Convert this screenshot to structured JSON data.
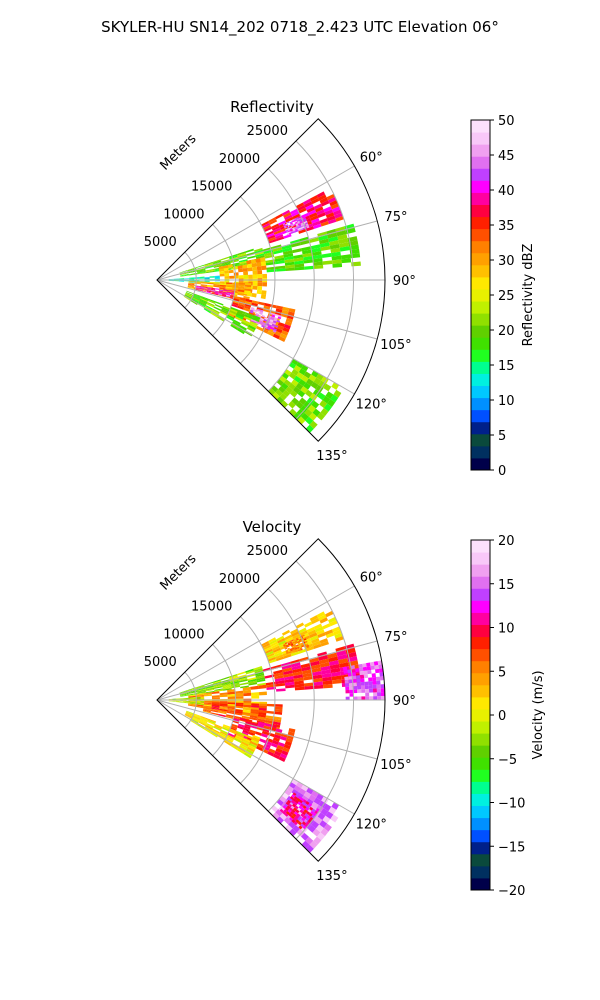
{
  "figure": {
    "suptitle": "SKYLER-HU  SN14_202  0718_2.423 UTC Elevation 06°"
  },
  "chart_data": [
    {
      "type": "heatmap",
      "subtype": "polar-sector",
      "title": "Reflectivity",
      "radial_label": "Meters",
      "radial_ticks": [
        "5000",
        "10000",
        "15000",
        "20000",
        "25000"
      ],
      "angle_ticks": [
        "60°",
        "75°",
        "90°",
        "105°",
        "120°",
        "135°"
      ],
      "angle_range_deg": [
        45,
        135
      ],
      "range_max_m": 29000,
      "grid": true,
      "colorbar": {
        "label": "Reflectivity dBZ",
        "range": [
          0,
          50
        ],
        "ticks": [
          "0",
          "5",
          "10",
          "15",
          "20",
          "25",
          "30",
          "35",
          "40",
          "45",
          "50"
        ],
        "colors": [
          "#00004a",
          "#003060",
          "#0a4a3c",
          "#00208a",
          "#0050ff",
          "#0090ff",
          "#00c8ff",
          "#00f0e0",
          "#00ff90",
          "#20ff20",
          "#40e000",
          "#60d000",
          "#90e000",
          "#c0f000",
          "#e8f000",
          "#ffe800",
          "#ffc000",
          "#ffa000",
          "#ff8000",
          "#ff5000",
          "#ff2000",
          "#ff0040",
          "#ff00a0",
          "#ff00ff",
          "#c040ff",
          "#e070f0",
          "#f0a0f0",
          "#f8c8f8",
          "#fce0fc"
        ]
      },
      "echo_regions": [
        {
          "angle_deg": [
            62,
            72
          ],
          "range_m": [
            15000,
            25000
          ],
          "value": 37
        },
        {
          "angle_deg": [
            66,
            71
          ],
          "range_m": [
            17500,
            20500
          ],
          "value": 44
        },
        {
          "angle_deg": [
            72,
            82
          ],
          "range_m": [
            3000,
            14000
          ],
          "value": 20
        },
        {
          "angle_deg": [
            74,
            86
          ],
          "range_m": [
            14000,
            26000
          ],
          "value": 19
        },
        {
          "angle_deg": [
            78,
            100
          ],
          "range_m": [
            8000,
            14000
          ],
          "value": 29
        },
        {
          "angle_deg": [
            86,
            94
          ],
          "range_m": [
            1500,
            8000
          ],
          "value": 13
        },
        {
          "angle_deg": [
            92,
            104
          ],
          "range_m": [
            4000,
            12000
          ],
          "value": 30
        },
        {
          "angle_deg": [
            98,
            104
          ],
          "range_m": [
            5000,
            10000
          ],
          "value": 40
        },
        {
          "angle_deg": [
            102,
            116
          ],
          "range_m": [
            10000,
            18000
          ],
          "value": 33
        },
        {
          "angle_deg": [
            106,
            114
          ],
          "range_m": [
            12500,
            16500
          ],
          "value": 44
        },
        {
          "angle_deg": [
            110,
            122
          ],
          "range_m": [
            4000,
            14000
          ],
          "value": 20
        },
        {
          "angle_deg": [
            120,
            135
          ],
          "range_m": [
            20000,
            27500
          ],
          "value": 20
        }
      ]
    },
    {
      "type": "heatmap",
      "subtype": "polar-sector",
      "title": "Velocity",
      "radial_label": "Meters",
      "radial_ticks": [
        "5000",
        "10000",
        "15000",
        "20000",
        "25000"
      ],
      "angle_ticks": [
        "60°",
        "75°",
        "90°",
        "105°",
        "120°",
        "135°"
      ],
      "angle_range_deg": [
        45,
        135
      ],
      "range_max_m": 29000,
      "grid": true,
      "colorbar": {
        "label": "Velocity (m/s)",
        "range": [
          -20,
          20
        ],
        "ticks": [
          "−20",
          "−15",
          "−10",
          "−5",
          "0",
          "5",
          "10",
          "15",
          "20"
        ],
        "colors": [
          "#00004a",
          "#003060",
          "#0a4a3c",
          "#00208a",
          "#0050ff",
          "#0090ff",
          "#00c8ff",
          "#00f0e0",
          "#00ff90",
          "#20ff20",
          "#40e000",
          "#60d000",
          "#90e000",
          "#c0f000",
          "#e8f000",
          "#ffe800",
          "#ffc000",
          "#ffa000",
          "#ff8000",
          "#ff5000",
          "#ff2000",
          "#ff0040",
          "#ff00a0",
          "#ff00ff",
          "#c040ff",
          "#e070f0",
          "#f0a0f0",
          "#f8c8f8",
          "#fce0fc"
        ]
      },
      "echo_regions": [
        {
          "angle_deg": [
            62,
            72
          ],
          "range_m": [
            15000,
            25000
          ],
          "value": 2
        },
        {
          "angle_deg": [
            66,
            71
          ],
          "range_m": [
            17500,
            20500
          ],
          "value": 5
        },
        {
          "angle_deg": [
            72,
            82
          ],
          "range_m": [
            3000,
            14000
          ],
          "value": -3
        },
        {
          "angle_deg": [
            74,
            86
          ],
          "range_m": [
            14000,
            26000
          ],
          "value": 9
        },
        {
          "angle_deg": [
            80,
            90
          ],
          "range_m": [
            24000,
            29000
          ],
          "value": 14
        },
        {
          "angle_deg": [
            82,
            100
          ],
          "range_m": [
            4000,
            14000
          ],
          "value": 4
        },
        {
          "angle_deg": [
            86,
            96
          ],
          "range_m": [
            1500,
            6000
          ],
          "value": -2
        },
        {
          "angle_deg": [
            92,
            104
          ],
          "range_m": [
            6000,
            16000
          ],
          "value": 7
        },
        {
          "angle_deg": [
            102,
            116
          ],
          "range_m": [
            10000,
            18000
          ],
          "value": 9
        },
        {
          "angle_deg": [
            110,
            122
          ],
          "range_m": [
            4000,
            14000
          ],
          "value": 1
        },
        {
          "angle_deg": [
            120,
            135
          ],
          "range_m": [
            20000,
            27500
          ],
          "value": 16
        },
        {
          "angle_deg": [
            124,
            132
          ],
          "range_m": [
            21000,
            25000
          ],
          "value": 11
        }
      ]
    }
  ]
}
